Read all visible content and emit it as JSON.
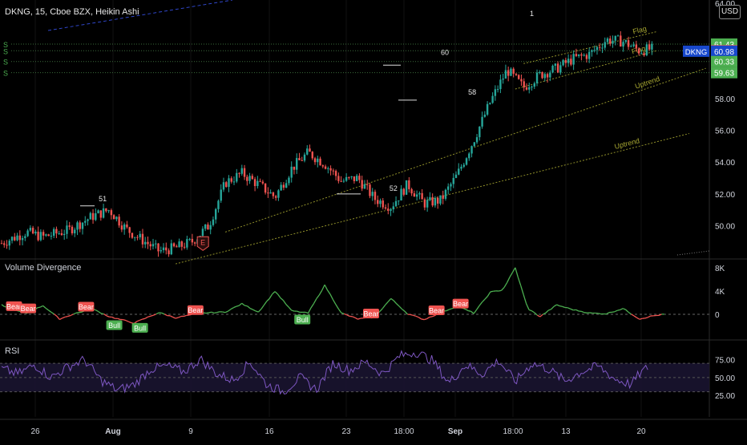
{
  "header": {
    "title": "DKNG, 15, Cboe BZX, Heikin Ashi",
    "currency": "USD",
    "ticker_tag": "DKNG"
  },
  "colors": {
    "background": "#000000",
    "up": "#26a69a",
    "down": "#ef5350",
    "trendline": "#a8a832",
    "rsi": "#7e57c2",
    "volume_up": "#4caf50",
    "volume_down": "#ef5350",
    "tag_blue": "#1848cc",
    "tag_green": "#4caf50",
    "tag_red": "#ef5350"
  },
  "chart_data": [
    {
      "type": "candlestick",
      "pane": "price",
      "x_tick_labels": [
        "26",
        "Aug",
        "9",
        "16",
        "23",
        "18:00",
        "Sep",
        "18:00",
        "13",
        "20"
      ],
      "y_tick_labels": [
        "64.00",
        "58.00",
        "56.00",
        "54.00",
        "52.00",
        "50.00"
      ],
      "ylim": [
        48.0,
        64.0
      ],
      "anchors": [
        {
          "t": 0,
          "v": 48.9
        },
        {
          "t": 3,
          "v": 49.6
        },
        {
          "t": 5,
          "v": 49.3
        },
        {
          "t": 8,
          "v": 49.7
        },
        {
          "t": 11,
          "v": 50.6
        },
        {
          "t": 13,
          "v": 51.0
        },
        {
          "t": 15,
          "v": 49.8
        },
        {
          "t": 17,
          "v": 49.1
        },
        {
          "t": 19,
          "v": 48.4
        },
        {
          "t": 21,
          "v": 48.6
        },
        {
          "t": 23,
          "v": 49.0
        },
        {
          "t": 25,
          "v": 50.0
        },
        {
          "t": 27,
          "v": 52.7
        },
        {
          "t": 29,
          "v": 53.3
        },
        {
          "t": 31,
          "v": 52.6
        },
        {
          "t": 33,
          "v": 51.8
        },
        {
          "t": 35,
          "v": 53.6
        },
        {
          "t": 37,
          "v": 54.6
        },
        {
          "t": 39,
          "v": 53.9
        },
        {
          "t": 41,
          "v": 52.8
        },
        {
          "t": 43,
          "v": 53.0
        },
        {
          "t": 45,
          "v": 51.7
        },
        {
          "t": 47,
          "v": 51.2
        },
        {
          "t": 49,
          "v": 52.6
        },
        {
          "t": 51,
          "v": 51.4
        },
        {
          "t": 53,
          "v": 51.6
        },
        {
          "t": 55,
          "v": 53.2
        },
        {
          "t": 57,
          "v": 55.4
        },
        {
          "t": 59,
          "v": 57.8
        },
        {
          "t": 61,
          "v": 59.8
        },
        {
          "t": 63,
          "v": 58.7
        },
        {
          "t": 65,
          "v": 59.5
        },
        {
          "t": 67,
          "v": 59.9
        },
        {
          "t": 69,
          "v": 60.5
        },
        {
          "t": 71,
          "v": 60.8
        },
        {
          "t": 73,
          "v": 61.7
        },
        {
          "t": 75,
          "v": 61.6
        },
        {
          "t": 77,
          "v": 61.0
        },
        {
          "t": 78,
          "v": 61.1
        }
      ],
      "trendlines": [
        {
          "label": "Uptrend",
          "start": [
            21,
            47.6
          ],
          "end": [
            83,
            55.8
          ]
        },
        {
          "label": "Uptrend",
          "start": [
            27,
            49.6
          ],
          "end": [
            85,
            59.9
          ]
        },
        {
          "label": "Flag",
          "start": [
            63,
            60.2
          ],
          "end": [
            79,
            62.2
          ]
        },
        {
          "label": "Flag",
          "start": [
            62,
            58.6
          ],
          "end": [
            79,
            61.0
          ]
        }
      ],
      "horizontal_levels": [
        {
          "value": 61.43,
          "label": "S"
        },
        {
          "value": 61.01,
          "label": "S"
        },
        {
          "value": 60.33,
          "label": "S"
        },
        {
          "value": 59.63,
          "label": "S"
        }
      ],
      "annotations": [
        "51",
        "60",
        "58",
        "52",
        "1",
        "E"
      ],
      "price_tags": [
        {
          "value": 61.43,
          "text": "61.43",
          "kind": "green"
        },
        {
          "value": 61.01,
          "text": "61.01",
          "kind": "red"
        },
        {
          "value": 60.98,
          "text": "60.98",
          "kind": "blue"
        },
        {
          "value": 60.33,
          "text": "60.33",
          "kind": "green"
        },
        {
          "value": 59.63,
          "text": "59.63",
          "kind": "green"
        }
      ]
    },
    {
      "type": "line",
      "pane": "volume_divergence",
      "title": "Volume Divergence",
      "y_tick_labels": [
        "8K",
        "4K",
        "0"
      ],
      "ylim": [
        -2500,
        8500
      ],
      "anchors": [
        {
          "t": 0,
          "v": 1600
        },
        {
          "t": 1.5,
          "v": 700
        },
        {
          "t": 3,
          "v": 200
        },
        {
          "t": 5,
          "v": 1500
        },
        {
          "t": 7,
          "v": -800
        },
        {
          "t": 9,
          "v": 200
        },
        {
          "t": 11,
          "v": 900
        },
        {
          "t": 13,
          "v": -400
        },
        {
          "t": 16,
          "v": -1500
        },
        {
          "t": 19,
          "v": 300
        },
        {
          "t": 21,
          "v": -600
        },
        {
          "t": 24,
          "v": 200
        },
        {
          "t": 27,
          "v": 400
        },
        {
          "t": 29,
          "v": 1800
        },
        {
          "t": 31,
          "v": 400
        },
        {
          "t": 33,
          "v": 4000
        },
        {
          "t": 35,
          "v": 600
        },
        {
          "t": 37,
          "v": 200
        },
        {
          "t": 39,
          "v": 5000
        },
        {
          "t": 41,
          "v": 200
        },
        {
          "t": 43,
          "v": -800
        },
        {
          "t": 45,
          "v": -500
        },
        {
          "t": 47,
          "v": 2700
        },
        {
          "t": 49,
          "v": 100
        },
        {
          "t": 51,
          "v": -900
        },
        {
          "t": 53,
          "v": 300
        },
        {
          "t": 55,
          "v": 1400
        },
        {
          "t": 57,
          "v": 200
        },
        {
          "t": 59,
          "v": 3800
        },
        {
          "t": 60.5,
          "v": 4200
        },
        {
          "t": 62,
          "v": 8000
        },
        {
          "t": 63.5,
          "v": 1000
        },
        {
          "t": 65,
          "v": -400
        },
        {
          "t": 67,
          "v": 1600
        },
        {
          "t": 69,
          "v": 800
        },
        {
          "t": 71,
          "v": 200
        },
        {
          "t": 73,
          "v": 100
        },
        {
          "t": 75,
          "v": 1000
        },
        {
          "t": 77,
          "v": -800
        },
        {
          "t": 78.5,
          "v": -300
        },
        {
          "t": 80,
          "v": 0
        }
      ],
      "signals": [
        {
          "text": "Bear",
          "t": 1.5,
          "kind": "bear"
        },
        {
          "text": "Bear",
          "t": 3.2,
          "kind": "bear"
        },
        {
          "text": "Bear",
          "t": 10.2,
          "kind": "bear"
        },
        {
          "text": "Bull",
          "t": 13.6,
          "kind": "bull"
        },
        {
          "text": "Bull",
          "t": 16.7,
          "kind": "bull"
        },
        {
          "text": "Bear",
          "t": 23.4,
          "kind": "bear"
        },
        {
          "text": "Bull",
          "t": 36.3,
          "kind": "bull"
        },
        {
          "text": "Bear",
          "t": 44.6,
          "kind": "bear"
        },
        {
          "text": "Bear",
          "t": 52.5,
          "kind": "bear"
        },
        {
          "text": "Bear",
          "t": 55.4,
          "kind": "bear"
        }
      ]
    },
    {
      "type": "line",
      "pane": "rsi",
      "title": "RSI",
      "y_tick_labels": [
        "75.00",
        "50.00",
        "25.00"
      ],
      "ylim": [
        18,
        96
      ],
      "band": [
        30,
        70
      ],
      "anchors": [
        {
          "t": 0,
          "v": 62
        },
        {
          "t": 2,
          "v": 55
        },
        {
          "t": 4,
          "v": 68
        },
        {
          "t": 6,
          "v": 50
        },
        {
          "t": 8,
          "v": 65
        },
        {
          "t": 10,
          "v": 75
        },
        {
          "t": 12,
          "v": 46
        },
        {
          "t": 14,
          "v": 32
        },
        {
          "t": 16,
          "v": 40
        },
        {
          "t": 18,
          "v": 62
        },
        {
          "t": 20,
          "v": 66
        },
        {
          "t": 22,
          "v": 58
        },
        {
          "t": 24,
          "v": 76
        },
        {
          "t": 26,
          "v": 55
        },
        {
          "t": 28,
          "v": 46
        },
        {
          "t": 30,
          "v": 72
        },
        {
          "t": 32,
          "v": 40
        },
        {
          "t": 34,
          "v": 30
        },
        {
          "t": 36,
          "v": 50
        },
        {
          "t": 38,
          "v": 33
        },
        {
          "t": 40,
          "v": 70
        },
        {
          "t": 42,
          "v": 60
        },
        {
          "t": 44,
          "v": 72
        },
        {
          "t": 46,
          "v": 55
        },
        {
          "t": 48,
          "v": 80
        },
        {
          "t": 50,
          "v": 86
        },
        {
          "t": 52,
          "v": 74
        },
        {
          "t": 54,
          "v": 42
        },
        {
          "t": 56,
          "v": 68
        },
        {
          "t": 58,
          "v": 55
        },
        {
          "t": 60,
          "v": 74
        },
        {
          "t": 62,
          "v": 44
        },
        {
          "t": 64,
          "v": 70
        },
        {
          "t": 66,
          "v": 62
        },
        {
          "t": 68,
          "v": 45
        },
        {
          "t": 70,
          "v": 58
        },
        {
          "t": 72,
          "v": 66
        },
        {
          "t": 74,
          "v": 48
        },
        {
          "t": 76,
          "v": 40
        },
        {
          "t": 77,
          "v": 55
        },
        {
          "t": 78,
          "v": 64
        }
      ]
    }
  ]
}
